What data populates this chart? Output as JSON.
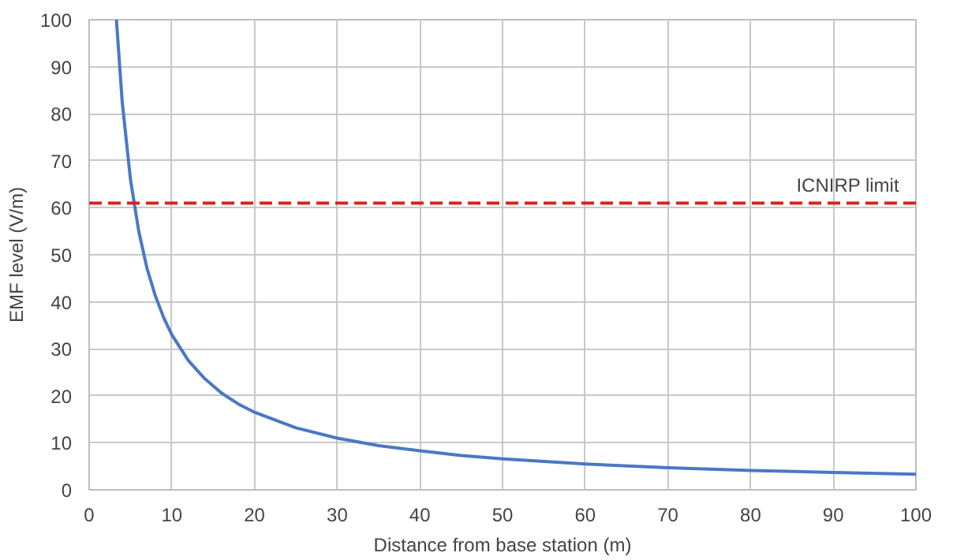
{
  "chart_data": {
    "type": "line",
    "xlabel": "Distance from base station (m)",
    "ylabel": "EMF level (V/m)",
    "x": [
      3.3,
      4,
      5,
      6,
      7,
      8,
      9,
      10,
      12,
      14,
      16,
      18,
      20,
      25,
      30,
      35,
      40,
      45,
      50,
      60,
      70,
      80,
      90,
      100
    ],
    "series": [
      {
        "color": "#4a78c4",
        "values": [
          100,
          82.5,
          66,
          55,
          47.1,
          41.3,
          36.7,
          33,
          27.5,
          23.6,
          20.6,
          18.3,
          16.5,
          13.2,
          11,
          9.4,
          8.3,
          7.3,
          6.6,
          5.5,
          4.7,
          4.1,
          3.7,
          3.3
        ]
      }
    ],
    "xlim": [
      0,
      100
    ],
    "ylim": [
      0,
      100
    ],
    "xticks": [
      0,
      10,
      20,
      30,
      40,
      50,
      60,
      70,
      80,
      90,
      100
    ],
    "yticks": [
      0,
      10,
      20,
      30,
      40,
      50,
      60,
      70,
      80,
      90,
      100
    ],
    "grid": true,
    "marker": "none",
    "line_style": "solid",
    "ref_lines": [
      {
        "axis": "y",
        "value": 61,
        "label": "ICNIRP limit",
        "color": "#e0201b",
        "line_style": "dashed"
      }
    ]
  }
}
